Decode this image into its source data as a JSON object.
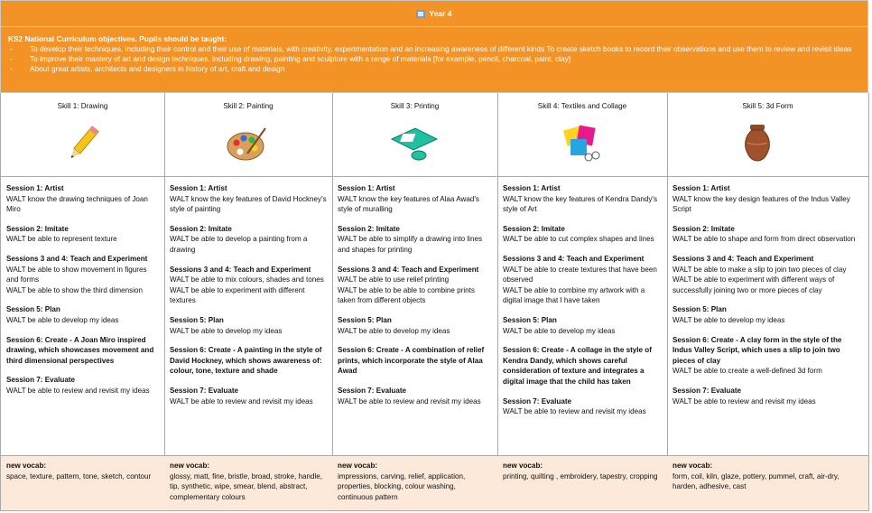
{
  "header": {
    "title": "Year 4"
  },
  "objectives": {
    "heading": "KS2 National Curriculum objectives. Pupils should be taught:",
    "items": [
      "To develop their techniques, including their control and their use of materials, with creativity, experimentation and an increasing awareness of different kinds To create sketch books to record their observations and use them to review and revisit ideas",
      "To improve their mastery of art and design techniques, including drawing, painting and sculpture with a range of materials [for example, pencil, charcoal, paint, clay]",
      "About great artists, architects and designers in history of art, craft and design"
    ]
  },
  "skills": [
    {
      "title": "Skill 1: Drawing",
      "sessions": [
        {
          "heading": "Session 1: Artist",
          "lines": [
            "WALT know the drawing techniques of Joan Miro"
          ]
        },
        {
          "heading": "Session 2: Imitate",
          "lines": [
            "WALT be able to represent texture"
          ]
        },
        {
          "heading": "Sessions 3 and 4: Teach and Experiment",
          "lines": [
            "WALT be able to show movement in figures and forms",
            "WALT be able to show the third dimension"
          ]
        },
        {
          "heading": "Session 5: Plan",
          "lines": [
            "WALT be able to develop my ideas"
          ]
        },
        {
          "heading": "Session 6: Create - A Joan Miro inspired drawing, which showcases movement and third dimensional perspectives",
          "lines": []
        },
        {
          "heading": "Session 7: Evaluate",
          "lines": [
            "WALT be able to review and revisit my ideas"
          ]
        }
      ],
      "vocab_label": "new vocab:",
      "vocab": "space, texture, pattern, tone, sketch, contour"
    },
    {
      "title": "Skill 2: Painting",
      "sessions": [
        {
          "heading": "Session 1: Artist",
          "lines": [
            "WALT know the key features of David Hockney's style of painting"
          ]
        },
        {
          "heading": "Session 2: Imitate",
          "lines": [
            "WALT be able to develop a painting from a drawing"
          ]
        },
        {
          "heading": "Sessions 3 and 4: Teach and Experiment",
          "lines": [
            "WALT be able to mix colours, shades and tones",
            "WALT be able to experiment with different textures"
          ]
        },
        {
          "heading": "Session 5: Plan",
          "lines": [
            "WALT be able to develop my ideas"
          ]
        },
        {
          "heading": "Session 6: Create - A painting in the style of David Hockney, which shows awareness of: colour, tone, texture and shade",
          "lines": []
        },
        {
          "heading": "Session 7: Evaluate",
          "lines": [
            "WALT be able to review and revisit my ideas"
          ]
        }
      ],
      "vocab_label": "new vocab:",
      "vocab": "glossy, matt, fine, bristle, broad, stroke, handle, tip, synthetic, wipe, smear, blend, abstract, complementary colours"
    },
    {
      "title": "Skill 3: Printing",
      "sessions": [
        {
          "heading": "Session 1: Artist",
          "lines": [
            "WALT know the key features of Alaa Awad's style of muralling"
          ]
        },
        {
          "heading": "Session 2: Imitate",
          "lines": [
            "WALT be able to simplify a drawing into lines and shapes for printing"
          ]
        },
        {
          "heading": "Sessions 3 and 4: Teach and Experiment",
          "lines": [
            "WALT be able to use relief printing",
            "WALT be able to be able to combine prints taken from different objects"
          ]
        },
        {
          "heading": "Session 5: Plan",
          "lines": [
            "WALT be able to develop my ideas"
          ]
        },
        {
          "heading": "Session 6: Create - A combination of relief prints, which incorporate the style of Alaa Awad",
          "lines": []
        },
        {
          "heading": "Session 7: Evaluate",
          "lines": [
            "WALT be able to review and revisit my ideas"
          ]
        }
      ],
      "vocab_label": "new vocab:",
      "vocab": "impressions, carving, relief, application, properties, blocking, colour washing, continuous pattern"
    },
    {
      "title": "Skill 4: Textiles and Collage",
      "sessions": [
        {
          "heading": "Session 1: Artist",
          "lines": [
            "WALT know the key features of Kendra Dandy's style of Art"
          ]
        },
        {
          "heading": "Session 2: Imitate",
          "lines": [
            "WALT be able to cut complex shapes and lines"
          ]
        },
        {
          "heading": "Sessions 3 and 4: Teach and Experiment",
          "lines": [
            "WALT be able to create textures that have been observed",
            "WALT be able to combine my artwork with a digital image that I have taken"
          ]
        },
        {
          "heading": "Session 5: Plan",
          "lines": [
            "WALT be able to develop my ideas"
          ]
        },
        {
          "heading": "Session 6: Create - A collage in the style of Kendra Dandy, which shows careful consideration of texture and integrates a digital image that the child has taken",
          "lines": []
        },
        {
          "heading": "Session 7: Evaluate",
          "lines": [
            "WALT be able to review and revisit my ideas"
          ]
        }
      ],
      "vocab_label": "new vocab:",
      "vocab": "printing, quilting  , embroidery, tapestry, cropping"
    },
    {
      "title": "Skill 5: 3d Form",
      "sessions": [
        {
          "heading": "Session 1: Artist",
          "lines": [
            "WALT know the key design features of the Indus Valley Script"
          ]
        },
        {
          "heading": "Session 2: Imitate",
          "lines": [
            "WALT be able to shape and form from direct observation"
          ]
        },
        {
          "heading": "Sessions 3 and 4: Teach and Experiment",
          "lines": [
            "WALT be able to make a slip to join two pieces of clay",
            "WALT be able to experiment with different ways of successfully joining two or more pieces of clay"
          ]
        },
        {
          "heading": "Session 5: Plan",
          "lines": [
            "WALT be able to develop my ideas"
          ]
        },
        {
          "heading": "Session 6: Create - A clay form in the style of the Indus Valley Script, which uses a slip to join two pieces of clay",
          "lines": [
            "WALT be able to create a well-defined 3d form"
          ]
        },
        {
          "heading": "Session 7: Evaluate",
          "lines": [
            "WALT be able to review and revisit my ideas"
          ]
        }
      ],
      "vocab_label": "new vocab:",
      "vocab": "form, coil, kiln, glaze, pottery, pummel, craft, air-dry, harden, adhesive, cast"
    }
  ]
}
